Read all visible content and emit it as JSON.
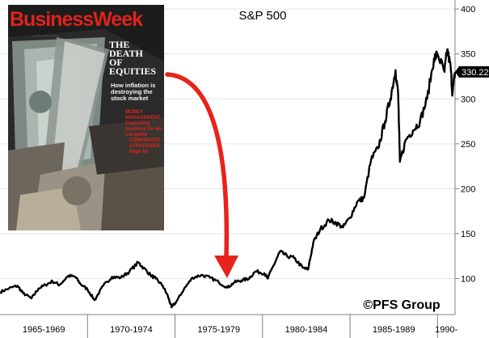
{
  "chart_data": {
    "type": "line",
    "title": "S&P 500",
    "x_category_labels": [
      "1965-1969",
      "1970-1974",
      "1975-1979",
      "1980-1984",
      "1985-1989",
      "1990-"
    ],
    "x_range": [
      1965.0,
      1991.0
    ],
    "ylim": [
      60,
      410
    ],
    "y_ticks": [
      100,
      150,
      200,
      250,
      300,
      350,
      400
    ],
    "last_value_label": "330.22",
    "watermark": "©PFS Group",
    "series": [
      {
        "color": "#000000",
        "x": [
          1965.0,
          1965.5,
          1966.0,
          1966.3,
          1966.8,
          1967.2,
          1967.6,
          1968.0,
          1968.4,
          1968.9,
          1969.3,
          1969.6,
          1970.0,
          1970.4,
          1970.9,
          1971.4,
          1971.9,
          1972.4,
          1972.9,
          1973.2,
          1973.6,
          1973.9,
          1974.3,
          1974.6,
          1974.8,
          1975.1,
          1975.5,
          1976.0,
          1976.5,
          1977.0,
          1977.5,
          1978.0,
          1978.4,
          1978.8,
          1979.2,
          1979.6,
          1980.1,
          1980.3,
          1980.8,
          1981.0,
          1981.4,
          1981.8,
          1982.3,
          1982.6,
          1982.9,
          1983.3,
          1983.8,
          1984.2,
          1984.6,
          1985.0,
          1985.4,
          1985.8,
          1986.2,
          1986.6,
          1987.0,
          1987.3,
          1987.6,
          1987.75,
          1987.85,
          1988.2,
          1988.6,
          1989.0,
          1989.4,
          1989.8,
          1990.0,
          1990.4,
          1990.55,
          1990.75,
          1990.85,
          1991.0
        ],
        "y": [
          85,
          89,
          92,
          84,
          78,
          89,
          93,
          97,
          93,
          103,
          102,
          94,
          88,
          76,
          92,
          102,
          101,
          108,
          118,
          112,
          104,
          100,
          92,
          80,
          68,
          75,
          88,
          101,
          104,
          101,
          96,
          90,
          96,
          98,
          100,
          108,
          106,
          100,
          122,
          130,
          125,
          123,
          112,
          110,
          140,
          155,
          165,
          162,
          157,
          168,
          185,
          190,
          232,
          245,
          275,
          300,
          332,
          305,
          230,
          255,
          265,
          275,
          300,
          345,
          350,
          330,
          355,
          335,
          305,
          330
        ]
      }
    ]
  }
}
